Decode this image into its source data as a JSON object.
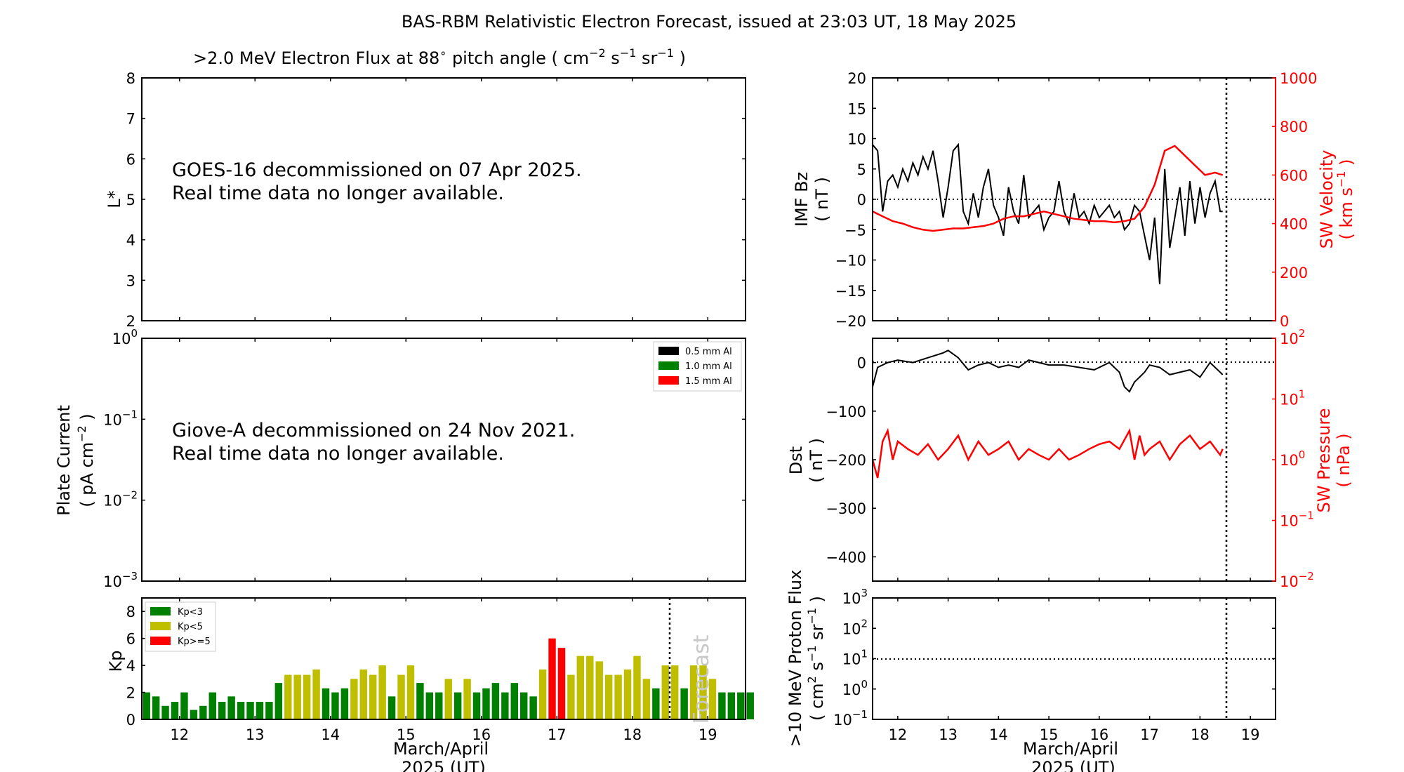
{
  "figure": {
    "title": "BAS-RBM Relativistic Electron Forecast, issued at 23:03 UT, 18 May 2025"
  },
  "colors": {
    "axis": "#000000",
    "red": "#ff0000",
    "kp_low": "#008000",
    "kp_mid": "#bfbf00",
    "kp_high": "#ff0000",
    "forecast_text": "#c8c8c8"
  },
  "chart_data": [
    {
      "id": "electron-flux",
      "type": "heatmap",
      "title": ">2.0 MeV Electron Flux at 88",
      "title_suffix": " pitch angle ( cm",
      "title_unit_tail": " )",
      "title_sup_deg": "∘",
      "title_sup_cm": "−2",
      "title_s": " s",
      "title_sup_s": "−1",
      "title_sr": " sr",
      "title_sup_sr": "−1",
      "ylabel": "L*",
      "ylim": [
        2,
        8
      ],
      "yticks": [
        "2",
        "3",
        "4",
        "5",
        "6",
        "7",
        "8"
      ],
      "message": [
        "GOES-16 decommissioned on 07 Apr 2025.",
        "Real time data no longer available."
      ]
    },
    {
      "id": "plate-current",
      "type": "line",
      "ylabel": "Plate Current",
      "ylabel2": "( pA cm",
      "ylabel2_sup": "−2",
      "ylabel2_tail": " )",
      "yscale": "log",
      "ylim": [
        0.001,
        1
      ],
      "ytick_base": "10",
      "ytick_exps": [
        "−3",
        "−2",
        "−1",
        "0"
      ],
      "legend": [
        "0.5 mm Al",
        "1.0 mm Al",
        "1.5 mm Al"
      ],
      "legend_colors": [
        "#000000",
        "#008000",
        "#ff0000"
      ],
      "message": [
        "Giove-A decommissioned on 24 Nov 2021.",
        "Real time data no longer available."
      ]
    },
    {
      "id": "kp",
      "type": "bar",
      "ylabel": "Kp",
      "ylim": [
        0,
        9
      ],
      "yticks": [
        "0",
        "2",
        "4",
        "6",
        "8"
      ],
      "xticks": [
        "12",
        "13",
        "14",
        "15",
        "16",
        "17",
        "18",
        "19"
      ],
      "xlabel": "March/April",
      "xlabel2": "2025 (UT)",
      "legend": [
        "Kp<3",
        "Kp<5",
        "Kp>=5"
      ],
      "forecast_label": "Forecast",
      "x_start": 11.5,
      "bar_step": 0.125,
      "values": [
        2.0,
        1.7,
        1.0,
        1.3,
        2.0,
        0.7,
        1.0,
        2.0,
        1.3,
        1.7,
        1.3,
        1.3,
        1.3,
        1.3,
        2.7,
        3.3,
        3.3,
        3.3,
        3.7,
        2.3,
        2.0,
        2.3,
        3.0,
        3.7,
        3.3,
        4.0,
        1.7,
        3.3,
        4.0,
        2.7,
        2.0,
        2.0,
        3.0,
        2.0,
        3.0,
        2.0,
        2.3,
        2.7,
        2.0,
        2.7,
        2.0,
        1.7,
        3.7,
        6.0,
        5.3,
        3.3,
        4.7,
        4.7,
        4.3,
        3.3,
        3.3,
        3.7,
        4.7,
        3.0,
        2.3,
        4.0,
        4.0,
        2.3,
        4.0,
        4.0,
        3.0,
        2.0,
        2.0,
        2.0,
        2.0
      ]
    },
    {
      "id": "imf-bz",
      "type": "line",
      "ylabel": "IMF Bz",
      "ylabel2": "( nT )",
      "ylim": [
        -20,
        20
      ],
      "yticks": [
        "−20",
        "−15",
        "−10",
        "−5",
        "0",
        "5",
        "10",
        "15",
        "20"
      ],
      "right_ylabel": "SW Velocity",
      "right_ylabel2": "( km s",
      "right_ylabel2_sup": "−1",
      "right_ylabel2_tail": " )",
      "right_ylim": [
        0,
        1000
      ],
      "right_yticks": [
        "0",
        "200",
        "400",
        "600",
        "800",
        "1000"
      ],
      "xlim": [
        11.5,
        19.5
      ],
      "now": 18.47,
      "series": [
        {
          "color": "#000000",
          "x": [
            11.5,
            11.6,
            11.7,
            11.8,
            11.9,
            12.0,
            12.1,
            12.2,
            12.3,
            12.4,
            12.5,
            12.6,
            12.7,
            12.8,
            12.9,
            13.0,
            13.1,
            13.2,
            13.3,
            13.4,
            13.5,
            13.6,
            13.7,
            13.8,
            13.9,
            14.0,
            14.1,
            14.2,
            14.3,
            14.4,
            14.5,
            14.6,
            14.7,
            14.8,
            14.9,
            15.0,
            15.1,
            15.2,
            15.3,
            15.4,
            15.5,
            15.6,
            15.7,
            15.8,
            15.9,
            16.0,
            16.1,
            16.2,
            16.3,
            16.4,
            16.5,
            16.6,
            16.7,
            16.8,
            16.9,
            17.0,
            17.1,
            17.2,
            17.3,
            17.4,
            17.5,
            17.6,
            17.7,
            17.8,
            17.9,
            18.0,
            18.1,
            18.2,
            18.3,
            18.4,
            18.45
          ],
          "y": [
            9,
            8,
            -2,
            3,
            4,
            2,
            5,
            3,
            6,
            4,
            7,
            5,
            8,
            3,
            -3,
            2,
            8,
            9,
            -2,
            -4,
            1,
            -3,
            2,
            5,
            -1,
            -3,
            -6,
            2,
            -2,
            -4,
            4,
            -3,
            -2,
            -1,
            -5,
            -3,
            -2,
            3,
            -2,
            -4,
            1,
            -3,
            -2,
            -4,
            -1,
            -3,
            -2,
            -1,
            -3,
            -2,
            -5,
            -4,
            -1,
            -2,
            -6,
            -10,
            -3,
            -14,
            5,
            -8,
            -3,
            2,
            -6,
            3,
            -4,
            2,
            -3,
            1,
            3,
            -2,
            -2
          ]
        },
        {
          "color": "#ff0000",
          "axis": "right",
          "x": [
            11.5,
            11.7,
            11.9,
            12.1,
            12.3,
            12.5,
            12.7,
            12.9,
            13.1,
            13.3,
            13.5,
            13.7,
            13.9,
            14.1,
            14.3,
            14.5,
            14.7,
            14.9,
            15.1,
            15.3,
            15.5,
            15.7,
            15.9,
            16.1,
            16.3,
            16.5,
            16.7,
            16.9,
            17.1,
            17.3,
            17.5,
            17.7,
            17.9,
            18.1,
            18.3,
            18.45
          ],
          "y": [
            450,
            430,
            410,
            400,
            385,
            375,
            370,
            375,
            380,
            380,
            385,
            390,
            400,
            420,
            430,
            430,
            440,
            450,
            440,
            430,
            420,
            415,
            410,
            410,
            405,
            410,
            420,
            470,
            560,
            700,
            720,
            680,
            640,
            600,
            610,
            600
          ]
        }
      ]
    },
    {
      "id": "dst",
      "type": "line",
      "ylabel": "Dst",
      "ylabel2": "( nT )",
      "ylim": [
        -450,
        50
      ],
      "yticks": [
        "−400",
        "−300",
        "−200",
        "−100",
        "0"
      ],
      "right_ylabel": "SW Pressure",
      "right_ylabel2": "( nPa )",
      "right_yscale": "log",
      "right_ylim": [
        0.01,
        100
      ],
      "right_ytick_base": "10",
      "right_ytick_exps": [
        "−2",
        "−1",
        "0",
        "1",
        "2"
      ],
      "xlim": [
        11.5,
        19.5
      ],
      "now": 18.47,
      "series": [
        {
          "color": "#000000",
          "x": [
            11.5,
            11.6,
            11.8,
            12.0,
            12.3,
            12.6,
            12.9,
            13.0,
            13.2,
            13.4,
            13.6,
            13.8,
            14.0,
            14.2,
            14.4,
            14.6,
            14.8,
            15.0,
            15.3,
            15.6,
            15.9,
            16.2,
            16.4,
            16.5,
            16.6,
            16.7,
            16.8,
            16.9,
            17.0,
            17.2,
            17.4,
            17.6,
            17.8,
            18.0,
            18.2,
            18.4,
            18.45
          ],
          "y": [
            -50,
            -10,
            0,
            5,
            0,
            10,
            20,
            25,
            10,
            -15,
            -5,
            0,
            -10,
            -5,
            -10,
            5,
            0,
            -5,
            -5,
            -10,
            -15,
            0,
            -20,
            -50,
            -60,
            -40,
            -30,
            -20,
            -5,
            -10,
            -25,
            -20,
            -15,
            -30,
            0,
            -20,
            -25
          ]
        },
        {
          "color": "#ff0000",
          "axis": "right",
          "x": [
            11.5,
            11.6,
            11.7,
            11.8,
            11.9,
            12.0,
            12.2,
            12.4,
            12.6,
            12.8,
            13.0,
            13.2,
            13.4,
            13.6,
            13.8,
            14.0,
            14.2,
            14.4,
            14.6,
            14.8,
            15.0,
            15.2,
            15.4,
            15.6,
            15.8,
            16.0,
            16.2,
            16.4,
            16.6,
            16.7,
            16.8,
            16.9,
            17.0,
            17.2,
            17.4,
            17.6,
            17.8,
            18.0,
            18.2,
            18.4,
            18.45
          ],
          "y": [
            1.0,
            0.5,
            2.0,
            3.0,
            1.0,
            2.0,
            1.5,
            1.2,
            1.8,
            1.0,
            1.5,
            2.5,
            1.0,
            2.0,
            1.2,
            1.5,
            2.0,
            1.0,
            1.5,
            1.2,
            1.0,
            1.5,
            1.0,
            1.2,
            1.5,
            1.8,
            2.0,
            1.5,
            3.0,
            1.0,
            2.5,
            1.2,
            1.5,
            2.0,
            1.0,
            1.8,
            2.5,
            1.5,
            2.0,
            1.2,
            1.5
          ]
        }
      ]
    },
    {
      "id": "proton-flux",
      "type": "line",
      "ylabel": ">10 MeV Proton Flux",
      "ylabel2": "( cm",
      "ylabel2_sup": "2",
      "ylabel2_s": " s",
      "ylabel2_sup_s": "−1",
      "ylabel2_sr": " sr",
      "ylabel2_sup_sr": "−1",
      "ylabel2_tail": " )",
      "yscale": "log",
      "ylim": [
        0.1,
        1000
      ],
      "ytick_base": "10",
      "ytick_exps": [
        "−1",
        "0",
        "1",
        "2",
        "3"
      ],
      "xticks": [
        "12",
        "13",
        "14",
        "15",
        "16",
        "17",
        "18",
        "19"
      ],
      "xlabel": "March/April",
      "xlabel2": "2025 (UT)",
      "threshold": 10,
      "now": 18.47
    }
  ]
}
